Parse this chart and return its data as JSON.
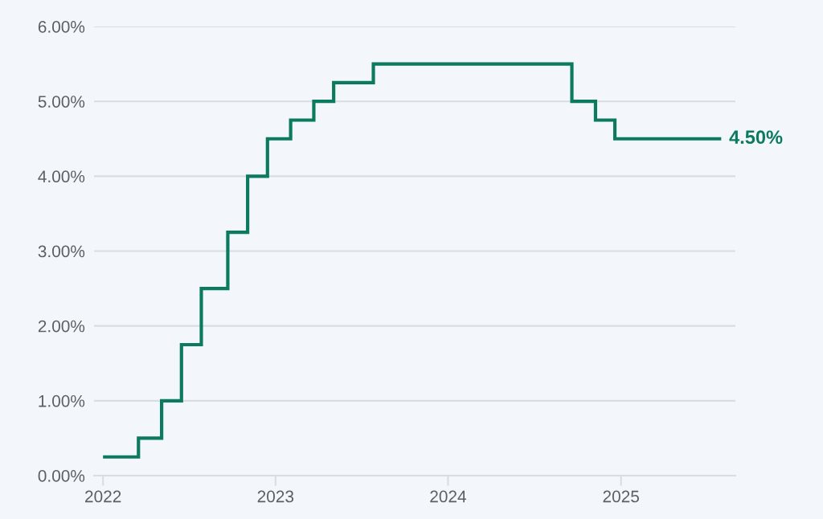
{
  "chart_data": {
    "type": "step",
    "x": [
      "2022-01-01",
      "2022-03-17",
      "2022-05-05",
      "2022-06-16",
      "2022-07-28",
      "2022-09-22",
      "2022-11-03",
      "2022-12-15",
      "2023-02-02",
      "2023-03-23",
      "2023-05-04",
      "2023-07-27",
      "2024-09-19",
      "2024-11-08",
      "2024-12-19",
      "2025-08-01"
    ],
    "values": [
      0.25,
      0.5,
      1.0,
      1.75,
      2.5,
      3.25,
      4.0,
      4.5,
      4.75,
      5.0,
      5.25,
      5.5,
      5.0,
      4.75,
      4.5,
      4.5
    ],
    "value_labels": [
      null,
      null,
      null,
      null,
      null,
      null,
      null,
      null,
      null,
      null,
      null,
      null,
      null,
      null,
      null,
      "4.50%"
    ],
    "color": "#0b7a5f",
    "xlim": [
      "2021-12-13",
      "2025-08-31"
    ],
    "xticks": [
      "2022",
      "2023",
      "2024",
      "2025"
    ],
    "ylim": [
      0,
      6
    ],
    "yticks": [
      {
        "value": 0,
        "label": "0.00%"
      },
      {
        "value": 1,
        "label": "1.00%"
      },
      {
        "value": 2,
        "label": "2.00%"
      },
      {
        "value": 3,
        "label": "3.00%"
      },
      {
        "value": 4,
        "label": "4.00%"
      },
      {
        "value": 5,
        "label": "5.00%"
      },
      {
        "value": 6,
        "label": "6.00%"
      }
    ],
    "grid": "y",
    "line_style": "solid"
  }
}
